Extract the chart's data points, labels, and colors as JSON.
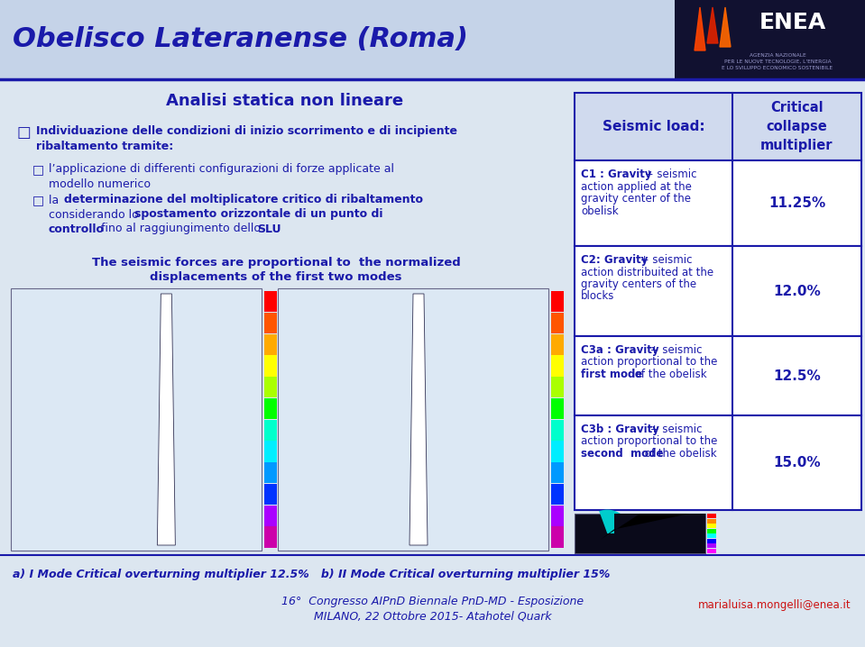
{
  "title": "Obelisco Lateranense (Roma)",
  "subtitle": "Analisi statica non lineare",
  "text_color": "#1a1aaa",
  "bg_color": "#dce6f0",
  "header_bg": "#c8d4e8",
  "bullet_main": "Individuazione delle condizioni di inizio scorrimento e di incipiente ribaltamento tramite:",
  "sub_a": "l’applicazione di differenti configurazioni di forze applicate al modello numerico",
  "sub_b_plain1": "la ",
  "sub_b_bold1": "determinazione del moltiplicatore critico di ribaltamento",
  "sub_b_plain2": "considerando lo ",
  "sub_b_bold2": "spostamento orizzontale di un punto di",
  "sub_b_bold3": "controllo",
  "sub_b_plain3": " fino al raggiungimento dello ",
  "sub_b_bold4": "SLU",
  "seismic_line1": "The seismic forces are proportional to  the normalized",
  "seismic_line2": "displacements of the first two modes",
  "table_header_left": "Seismic load:",
  "table_header_right": "Critical\ncollapse\nmultiplier",
  "rows": [
    {
      "bold": "C1 : Gravity",
      "plain": " + seismic\naction applied at the\ngravity center of the\nobelisk",
      "value": "11.25%"
    },
    {
      "bold": "C2: Gravity",
      "plain": " + seismic\naction distribuited at the\ngravity centers of the\nblocks",
      "value": "12.0%"
    },
    {
      "bold": "C3a : Gravity",
      "plain": " + seismic\naction proportional to the\n",
      "bold2": "first mode",
      "plain2": " of the obelisk",
      "value": "12.5%"
    },
    {
      "bold": "C3b : Gravity",
      "plain": " + seismic\naction proportional to the\n",
      "bold2": "second  mode",
      "plain2": " of the obelisk",
      "value": "15.0%"
    }
  ],
  "footer_a": "a) I Mode Critical overturning multiplier 12.5%   b) II Mode Critical overturning multiplier 15%",
  "footer_c1": "16°  Congresso AIPnD Biennale PnD-MD - Esposizione",
  "footer_c2": "MILANO, 22 Ottobre 2015- Atahotel Quark",
  "footer_email": "marialuisa.mongelli@enea.it",
  "enea_text": "ENEA",
  "enea_sub": "AGENZIA NAZIONALE\nPER LE NUOVE TECNOLOGIE, L'ENERGIA\nE LO SVILUPPO ECONOMICO SOSTENIBILE"
}
